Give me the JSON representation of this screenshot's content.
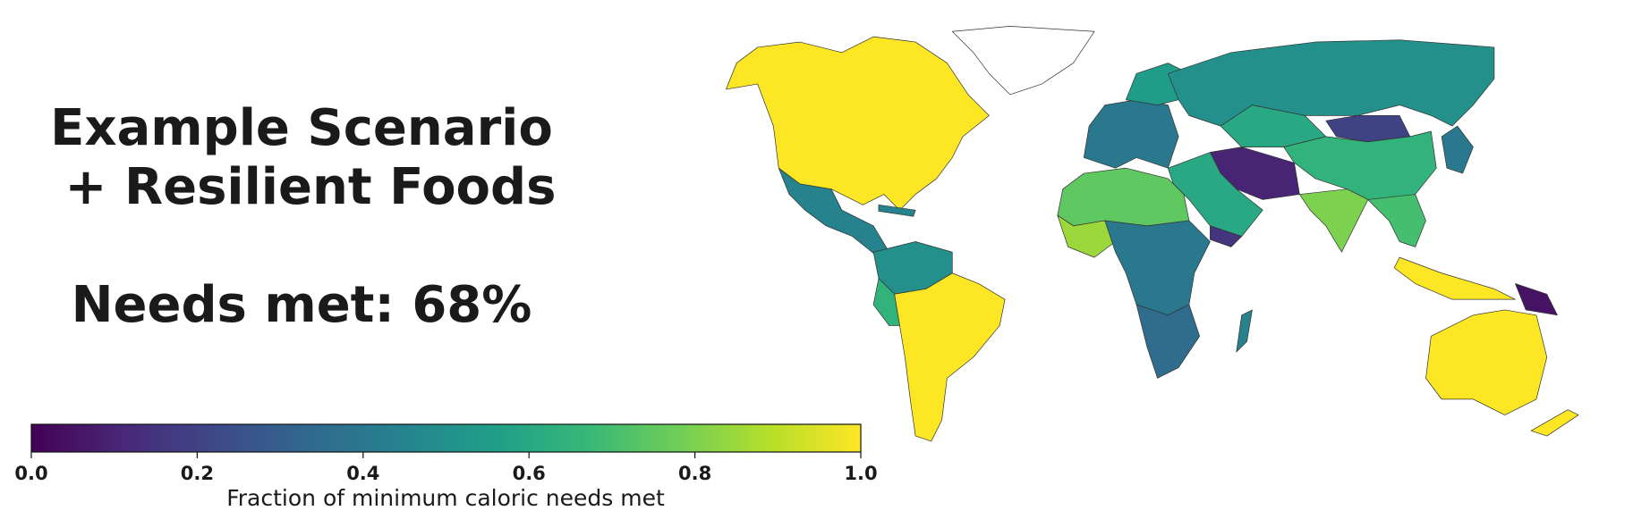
{
  "chart_data": {
    "type": "choropleth",
    "title_lines": [
      "Example Scenario",
      "+ Resilient Foods"
    ],
    "subtitle": "Needs met: 68%",
    "values": [
      1.0,
      0.45,
      0.45,
      0.5,
      1.0,
      0.65,
      0.4,
      0.55,
      0.5,
      0.6,
      0.2,
      0.65,
      0.4,
      0.1,
      0.6,
      0.15,
      0.8,
      0.7,
      1.0,
      0.05,
      1.0,
      1.0,
      0.75,
      0.85,
      0.4,
      0.35,
      0.45
    ],
    "colormap": [
      "#440154",
      "#482878",
      "#3e4989",
      "#31688e",
      "#26828e",
      "#1f9e89",
      "#35b779",
      "#6ece58",
      "#b5de2b",
      "#fde725"
    ],
    "clim": [
      0,
      1
    ],
    "cticks": [
      {
        "value": 0,
        "label": "0.0"
      },
      0.2,
      0.4,
      0.6,
      0.8,
      {
        "value": 1,
        "label": "1.0"
      }
    ],
    "clabel": "Fraction of minimum caloric needs met"
  }
}
